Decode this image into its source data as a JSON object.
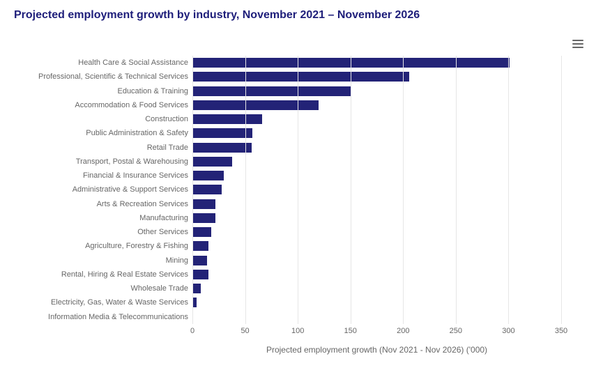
{
  "chart": {
    "type": "bar-horizontal",
    "title": "Projected employment growth by industry, November 2021 – November 2026",
    "title_color": "#1e1e7a",
    "title_fontsize": 16,
    "title_fontweight": 700,
    "xlabel": "Projected employment growth (Nov 2021 - Nov 2026) ('000)",
    "axis_label_color": "#666666",
    "axis_label_fontsize": 12,
    "tick_label_color": "#666666",
    "tick_fontsize": 11,
    "background_color": "#ffffff",
    "grid_color": "#e6e6e6",
    "bar_color": "#232377",
    "hamburger_color": "#666666",
    "xmin": 0,
    "xmax": 350,
    "xtick_step": 50,
    "xticks": [
      0,
      50,
      100,
      150,
      200,
      250,
      300,
      350
    ],
    "categories": [
      "Health Care & Social Assistance",
      "Professional, Scientific & Technical Services",
      "Education & Training",
      "Accommodation & Food Services",
      "Construction",
      "Public Administration & Safety",
      "Retail Trade",
      "Transport, Postal & Warehousing",
      "Financial & Insurance Services",
      "Administrative & Support Services",
      "Arts & Recreation Services",
      "Manufacturing",
      "Other Services",
      "Agriculture, Forestry & Fishing",
      "Mining",
      "Rental, Hiring & Real Estate Services",
      "Wholesale Trade",
      "Electricity, Gas, Water & Waste Services",
      "Information Media & Telecommunications"
    ],
    "values": [
      301,
      206,
      150,
      120,
      66,
      57,
      56,
      38,
      30,
      28,
      22,
      22,
      18,
      15,
      14,
      15,
      8,
      4,
      0
    ]
  }
}
